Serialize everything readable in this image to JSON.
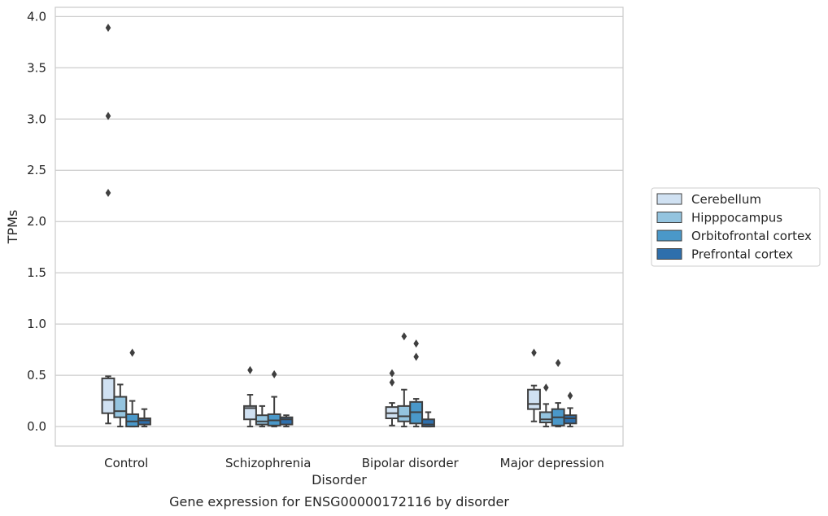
{
  "caption": "Gene expression for ENSG00000172116 by disorder",
  "chart_data": {
    "type": "box",
    "title": "",
    "xlabel": "Disorder",
    "ylabel": "TPMs",
    "ylim": [
      -0.19,
      4.09
    ],
    "yticks": [
      0.0,
      0.5,
      1.0,
      1.5,
      2.0,
      2.5,
      3.0,
      3.5,
      4.0
    ],
    "ytick_labels": [
      "0.0",
      "0.5",
      "1.0",
      "1.5",
      "2.0",
      "2.5",
      "3.0",
      "3.5",
      "4.0"
    ],
    "categories": [
      "Control",
      "Schizophrenia",
      "Bipolar disorder",
      "Major depression"
    ],
    "grid": "horizontal",
    "legend_position": "right",
    "series": [
      {
        "name": "Cerebellum",
        "color": "#d0e1f2",
        "boxes": [
          {
            "whislo": 0.03,
            "q1": 0.13,
            "med": 0.26,
            "q3": 0.47,
            "whishi": 0.49,
            "fliers": [
              2.28,
              3.03,
              3.89
            ]
          },
          {
            "whislo": 0.0,
            "q1": 0.07,
            "med": 0.18,
            "q3": 0.2,
            "whishi": 0.31,
            "fliers": [
              0.55
            ]
          },
          {
            "whislo": 0.01,
            "q1": 0.08,
            "med": 0.13,
            "q3": 0.19,
            "whishi": 0.23,
            "fliers": [
              0.43,
              0.52
            ]
          },
          {
            "whislo": 0.05,
            "q1": 0.17,
            "med": 0.22,
            "q3": 0.36,
            "whishi": 0.4,
            "fliers": [
              0.72
            ]
          }
        ]
      },
      {
        "name": "Hipppocampus",
        "color": "#94c4df",
        "boxes": [
          {
            "whislo": 0.0,
            "q1": 0.09,
            "med": 0.15,
            "q3": 0.29,
            "whishi": 0.41,
            "fliers": []
          },
          {
            "whislo": 0.0,
            "q1": 0.02,
            "med": 0.05,
            "q3": 0.11,
            "whishi": 0.2,
            "fliers": []
          },
          {
            "whislo": 0.0,
            "q1": 0.05,
            "med": 0.1,
            "q3": 0.2,
            "whishi": 0.36,
            "fliers": [
              0.88
            ]
          },
          {
            "whislo": 0.0,
            "q1": 0.04,
            "med": 0.07,
            "q3": 0.14,
            "whishi": 0.22,
            "fliers": [
              0.38
            ]
          }
        ]
      },
      {
        "name": "Orbitofrontal cortex",
        "color": "#4a98c9",
        "boxes": [
          {
            "whislo": 0.0,
            "q1": 0.0,
            "med": 0.05,
            "q3": 0.12,
            "whishi": 0.25,
            "fliers": [
              0.72
            ]
          },
          {
            "whislo": 0.0,
            "q1": 0.01,
            "med": 0.06,
            "q3": 0.12,
            "whishi": 0.29,
            "fliers": [
              0.51
            ]
          },
          {
            "whislo": 0.0,
            "q1": 0.03,
            "med": 0.14,
            "q3": 0.24,
            "whishi": 0.27,
            "fliers": [
              0.68,
              0.81
            ]
          },
          {
            "whislo": 0.0,
            "q1": 0.01,
            "med": 0.09,
            "q3": 0.17,
            "whishi": 0.23,
            "fliers": [
              0.62
            ]
          }
        ]
      },
      {
        "name": "Prefrontal cortex",
        "color": "#2e6fac",
        "boxes": [
          {
            "whislo": 0.0,
            "q1": 0.02,
            "med": 0.06,
            "q3": 0.08,
            "whishi": 0.17,
            "fliers": []
          },
          {
            "whislo": 0.0,
            "q1": 0.02,
            "med": 0.07,
            "q3": 0.09,
            "whishi": 0.11,
            "fliers": []
          },
          {
            "whislo": 0.0,
            "q1": 0.0,
            "med": 0.02,
            "q3": 0.07,
            "whishi": 0.14,
            "fliers": []
          },
          {
            "whislo": 0.0,
            "q1": 0.03,
            "med": 0.08,
            "q3": 0.11,
            "whishi": 0.18,
            "fliers": [
              0.3
            ]
          }
        ]
      }
    ]
  }
}
